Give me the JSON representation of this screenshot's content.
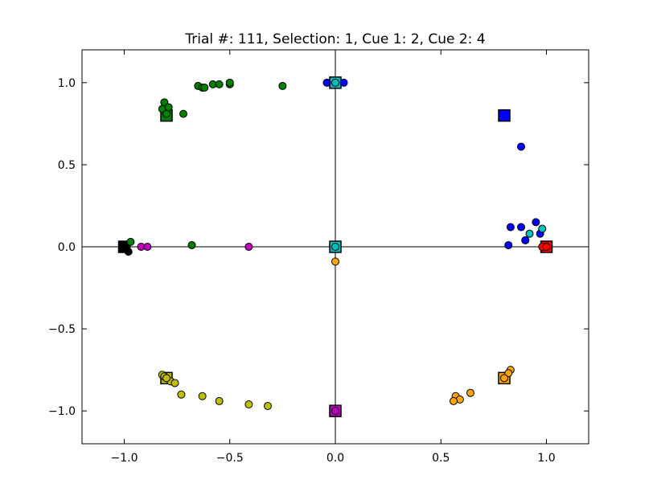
{
  "chart_data": {
    "type": "scatter",
    "title": "Trial #: 111, Selection: 1, Cue 1: 2, Cue 2: 4",
    "xlabel": "",
    "ylabel": "",
    "xlim": [
      -1.2,
      1.2
    ],
    "ylim": [
      -1.2,
      1.2
    ],
    "xticks": [
      -1.0,
      -0.5,
      0.0,
      0.5,
      1.0
    ],
    "yticks": [
      -1.0,
      -0.5,
      0.0,
      0.5,
      1.0
    ],
    "xtick_labels": [
      "−1.0",
      "−0.5",
      "0.0",
      "0.5",
      "1.0"
    ],
    "ytick_labels": [
      "−1.0",
      "−0.5",
      "0.0",
      "0.5",
      "1.0"
    ],
    "grid": false,
    "zero_lines": true,
    "targets": [
      {
        "color": "#ff0000",
        "x": 1.0,
        "y": 0.0
      },
      {
        "color": "#0000ff",
        "x": 0.8,
        "y": 0.8
      },
      {
        "color": "#00bfbf",
        "x": 0.0,
        "y": 1.0
      },
      {
        "color": "#008000",
        "x": -0.8,
        "y": 0.8
      },
      {
        "color": "#000000",
        "x": -1.0,
        "y": 0.0
      },
      {
        "color": "#bfbf00",
        "x": -0.8,
        "y": -0.8
      },
      {
        "color": "#bf00bf",
        "x": 0.0,
        "y": -1.0
      },
      {
        "color": "#ffa500",
        "x": 0.8,
        "y": -0.8
      },
      {
        "color": "#00bfbf",
        "x": 0.0,
        "y": 0.0
      }
    ],
    "series": [
      {
        "color": "#0000ff",
        "points": [
          [
            0.88,
            0.61
          ],
          [
            0.95,
            0.15
          ],
          [
            0.83,
            0.12
          ],
          [
            0.88,
            0.12
          ],
          [
            0.97,
            0.08
          ],
          [
            0.9,
            0.04
          ],
          [
            0.82,
            0.01
          ],
          [
            -0.04,
            1.0
          ],
          [
            0.04,
            1.0
          ]
        ]
      },
      {
        "color": "#00bfbf",
        "points": [
          [
            0.98,
            0.11
          ],
          [
            0.92,
            0.08
          ],
          [
            0.0,
            0.0
          ],
          [
            0.0,
            1.0
          ]
        ]
      },
      {
        "color": "#ff0000",
        "points": [
          [
            0.98,
            0.0
          ],
          [
            1.0,
            0.0
          ]
        ]
      },
      {
        "color": "#008000",
        "points": [
          [
            -0.81,
            0.88
          ],
          [
            -0.82,
            0.84
          ],
          [
            -0.79,
            0.85
          ],
          [
            -0.8,
            0.81
          ],
          [
            -0.72,
            0.81
          ],
          [
            -0.65,
            0.98
          ],
          [
            -0.63,
            0.97
          ],
          [
            -0.62,
            0.97
          ],
          [
            -0.58,
            0.99
          ],
          [
            -0.55,
            0.99
          ],
          [
            -0.5,
            0.99
          ],
          [
            -0.5,
            1.0
          ],
          [
            -0.25,
            0.98
          ],
          [
            -0.97,
            0.03
          ],
          [
            -0.68,
            0.01
          ]
        ]
      },
      {
        "color": "#000000",
        "points": [
          [
            -0.98,
            -0.03
          ],
          [
            -1.0,
            0.0
          ]
        ]
      },
      {
        "color": "#bf00bf",
        "points": [
          [
            -0.92,
            0.0
          ],
          [
            -0.89,
            0.0
          ],
          [
            -0.41,
            0.0
          ],
          [
            0.0,
            -1.0
          ]
        ]
      },
      {
        "color": "#bfbf00",
        "points": [
          [
            -0.82,
            -0.78
          ],
          [
            -0.81,
            -0.79
          ],
          [
            -0.78,
            -0.82
          ],
          [
            -0.76,
            -0.83
          ],
          [
            -0.73,
            -0.9
          ],
          [
            -0.63,
            -0.91
          ],
          [
            -0.55,
            -0.94
          ],
          [
            -0.41,
            -0.96
          ],
          [
            -0.32,
            -0.97
          ],
          [
            -0.8,
            -0.8
          ]
        ]
      },
      {
        "color": "#ffa500",
        "points": [
          [
            0.0,
            -0.09
          ],
          [
            0.83,
            -0.75
          ],
          [
            0.82,
            -0.77
          ],
          [
            0.8,
            -0.8
          ],
          [
            0.64,
            -0.89
          ],
          [
            0.57,
            -0.91
          ],
          [
            0.59,
            -0.93
          ],
          [
            0.56,
            -0.94
          ]
        ]
      }
    ]
  }
}
